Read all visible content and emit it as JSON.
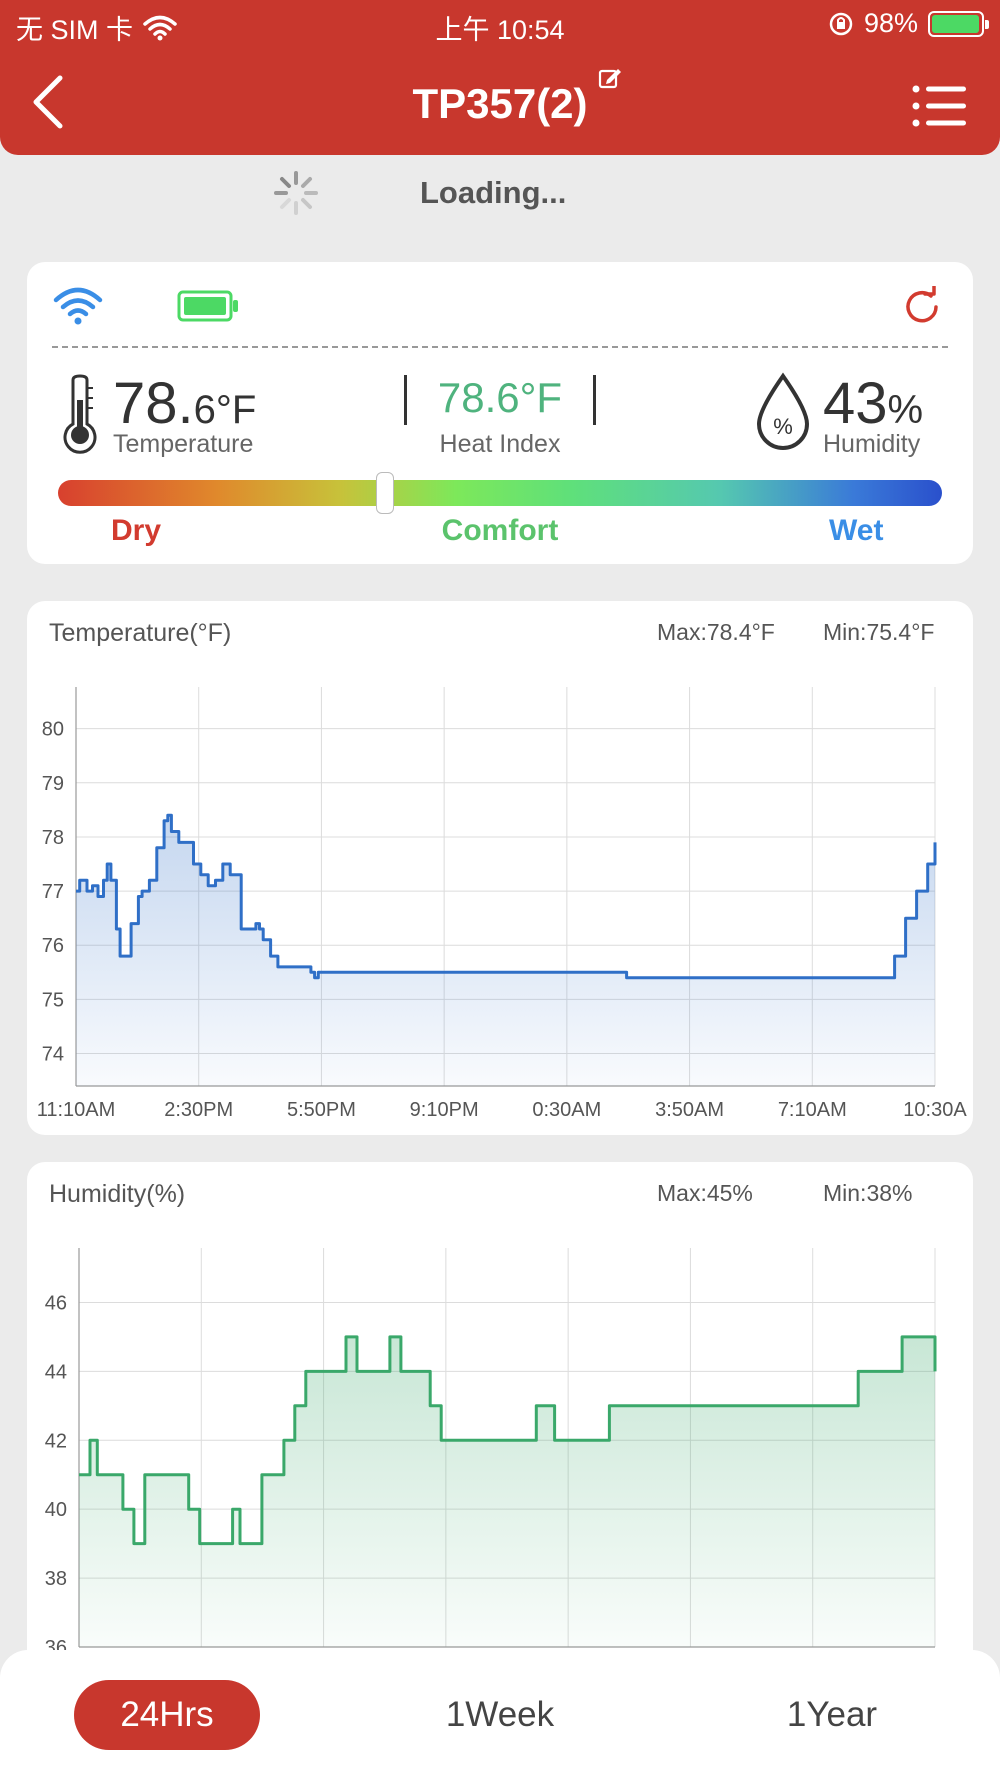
{
  "status_bar": {
    "carrier": "无 SIM 卡",
    "time": "上午 10:54",
    "battery": "98%"
  },
  "header": {
    "title": "TP357(2)"
  },
  "loading": {
    "text": "Loading..."
  },
  "reading": {
    "temp_int": "78.",
    "temp_dec": "6",
    "temp_unit": "°F",
    "temp_label": "Temperature",
    "heat_index_value": "78.6°F",
    "heat_index_label": "Heat Index",
    "humidity_value": "43",
    "humidity_unit": "%",
    "humidity_label": "Humidity",
    "comfort_levels": {
      "dry": "Dry",
      "comfort": "Comfort",
      "wet": "Wet"
    },
    "comfort_position": 0.37
  },
  "colors": {
    "brand": "#c8372d",
    "temp_line": "#2f6fc7",
    "humidity_line": "#3aa86a",
    "heat_index": "#4fb37e"
  },
  "chart_data": [
    {
      "type": "line",
      "title": "Temperature(°F)",
      "max_label": "Max:78.4°F",
      "min_label": "Min:75.4°F",
      "x_ticks": [
        "11:10AM",
        "2:30PM",
        "5:50PM",
        "9:10PM",
        "0:30AM",
        "3:50AM",
        "7:10AM",
        "10:30A"
      ],
      "y_ticks": [
        80,
        79,
        78,
        77,
        76,
        75,
        74
      ],
      "ylim": [
        73.4,
        80.4
      ],
      "grid": true,
      "series": [
        {
          "x": [
            0,
            0.1,
            0.3,
            0.45,
            0.6,
            0.75,
            0.85,
            0.95,
            1.1,
            1.2,
            1.3,
            1.5,
            1.7,
            1.8,
            2.0,
            2.2,
            2.4,
            2.5,
            2.6,
            2.8,
            3.0,
            3.2,
            3.4,
            3.6,
            3.8,
            4.0,
            4.2,
            4.5,
            4.7,
            4.9,
            5.0,
            5.1,
            5.3,
            5.5,
            5.7,
            5.9,
            6.0,
            6.2,
            6.4,
            6.5,
            6.6,
            6.8,
            7.0,
            7.3,
            7.6,
            7.9,
            8.2,
            8.5,
            8.8,
            9.2,
            10.0,
            11.0,
            12.0,
            13.0,
            14.0,
            15.0,
            16.0,
            17.0,
            18.0,
            19.0,
            20.0,
            21.0,
            21.5,
            22.0,
            22.3,
            22.6,
            22.9,
            23.2,
            23.4
          ],
          "values": [
            77.0,
            77.2,
            77.0,
            77.1,
            76.9,
            77.2,
            77.5,
            77.2,
            76.3,
            75.8,
            75.8,
            76.4,
            76.9,
            77.0,
            77.2,
            77.8,
            78.3,
            78.4,
            78.1,
            77.9,
            77.9,
            77.5,
            77.3,
            77.1,
            77.2,
            77.5,
            77.3,
            76.3,
            76.3,
            76.4,
            76.3,
            76.1,
            75.8,
            75.6,
            75.6,
            75.6,
            75.6,
            75.6,
            75.5,
            75.4,
            75.5,
            75.5,
            75.5,
            75.5,
            75.5,
            75.5,
            75.5,
            75.5,
            75.5,
            75.5,
            75.5,
            75.5,
            75.5,
            75.5,
            75.5,
            75.4,
            75.4,
            75.4,
            75.4,
            75.4,
            75.4,
            75.4,
            75.4,
            75.4,
            75.8,
            76.5,
            77.0,
            77.5,
            77.9
          ]
        }
      ]
    },
    {
      "type": "line",
      "title": "Humidity(%)",
      "max_label": "Max:45%",
      "min_label": "Min:38%",
      "y_ticks": [
        46,
        44,
        42,
        40,
        38,
        36
      ],
      "ylim": [
        36,
        47
      ],
      "grid": true,
      "series": [
        {
          "x": [
            0,
            0.3,
            0.5,
            0.8,
            1.0,
            1.2,
            1.5,
            1.8,
            2.0,
            2.3,
            2.6,
            3.0,
            3.3,
            3.6,
            3.8,
            4.0,
            4.2,
            4.4,
            4.7,
            5.0,
            5.3,
            5.6,
            5.9,
            6.2,
            6.5,
            6.8,
            7.0,
            7.3,
            7.6,
            7.9,
            8.2,
            8.5,
            8.8,
            9.0,
            9.3,
            9.6,
            9.9,
            10.2,
            10.5,
            10.8,
            11.2,
            11.6,
            12.0,
            12.5,
            13.0,
            13.5,
            14.0,
            14.5,
            15.0,
            15.5,
            16.0,
            16.5,
            17.0,
            17.5,
            18.0,
            18.5,
            19.0,
            19.5,
            20.0,
            20.5,
            21.0,
            21.3,
            21.6,
            21.9,
            22.2,
            22.5,
            22.8,
            23.1,
            23.4
          ],
          "values": [
            41,
            42,
            41,
            41,
            41,
            40,
            39,
            41,
            41,
            41,
            41,
            40,
            39,
            39,
            39,
            39,
            40,
            39,
            39,
            41,
            41,
            42,
            43,
            44,
            44,
            44,
            44,
            45,
            44,
            44,
            44,
            45,
            44,
            44,
            44,
            43,
            42,
            42,
            42,
            42,
            42,
            42,
            42,
            43,
            42,
            42,
            42,
            43,
            43,
            43,
            43,
            43,
            43,
            43,
            43,
            43,
            43,
            43,
            43,
            43,
            43,
            44,
            44,
            44,
            44,
            45,
            45,
            45,
            44
          ]
        }
      ]
    }
  ],
  "tabs": {
    "t24": "24Hrs",
    "week": "1Week",
    "year": "1Year"
  }
}
